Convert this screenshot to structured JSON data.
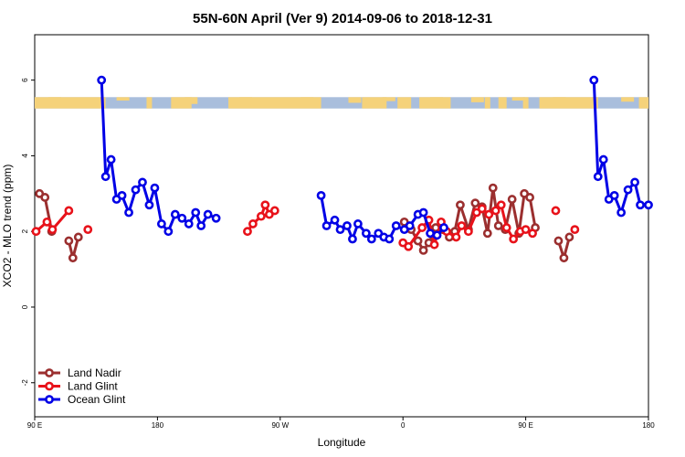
{
  "chart_data": {
    "type": "line",
    "title": "55N-60N April (Ver 9)   2014-09-06 to 2018-12-31",
    "xlabel": "Longitude",
    "ylabel": "XCO2 - MLO trend (ppm)",
    "x_ticks": [
      {
        "value": 90,
        "label": "90 E"
      },
      {
        "value": 180,
        "label": "180"
      },
      {
        "value": 270,
        "label": "90 W"
      },
      {
        "value": 360,
        "label": "0"
      },
      {
        "value": 450,
        "label": "90 E"
      },
      {
        "value": 540,
        "label": "180"
      }
    ],
    "y_ticks": [
      {
        "value": -2,
        "label": "-2"
      },
      {
        "value": 0,
        "label": "0"
      },
      {
        "value": 2,
        "label": "2"
      },
      {
        "value": 4,
        "label": "4"
      },
      {
        "value": 6,
        "label": "6"
      }
    ],
    "xlim": [
      90,
      540
    ],
    "ylim": [
      -2.9,
      7.2
    ],
    "land_band": {
      "y_range": [
        5.25,
        5.55
      ],
      "land_color": "#f5d27a",
      "ocean_color": "#a9bedc"
    },
    "legend": {
      "position": "bottom-left"
    },
    "series": [
      {
        "name": "Land Nadir",
        "color": "#9b2f2f",
        "points": [
          [
            93.5,
            3.0
          ],
          [
            97.5,
            2.9
          ],
          [
            102.5,
            2.0
          ],
          [
            115,
            1.75
          ],
          [
            118,
            1.3
          ],
          [
            122,
            1.85
          ],
          [
            361,
            2.25
          ],
          [
            366,
            2.05
          ],
          [
            371,
            1.75
          ],
          [
            375,
            1.5
          ],
          [
            379,
            1.7
          ],
          [
            384,
            2.1
          ],
          [
            389,
            2.05
          ],
          [
            394,
            1.85
          ],
          [
            398,
            2.0
          ],
          [
            402,
            2.7
          ],
          [
            408,
            2.05
          ],
          [
            413,
            2.75
          ],
          [
            418,
            2.65
          ],
          [
            422,
            1.95
          ],
          [
            426,
            3.15
          ],
          [
            430,
            2.15
          ],
          [
            435,
            2.05
          ],
          [
            440,
            2.85
          ],
          [
            445,
            1.95
          ],
          [
            449,
            3.0
          ],
          [
            453,
            2.9
          ],
          [
            457,
            2.1
          ],
          [
            474,
            1.75
          ],
          [
            478,
            1.3
          ],
          [
            482,
            1.85
          ]
        ]
      },
      {
        "name": "Land Glint",
        "color": "#e8121a",
        "points": [
          [
            91,
            2.0
          ],
          [
            99,
            2.25
          ],
          [
            103,
            2.05
          ],
          [
            115,
            2.55
          ],
          [
            129,
            2.05
          ],
          [
            246,
            2.0
          ],
          [
            250,
            2.2
          ],
          [
            256,
            2.4
          ],
          [
            259,
            2.7
          ],
          [
            262,
            2.45
          ],
          [
            266,
            2.55
          ],
          [
            360,
            1.7
          ],
          [
            364,
            1.6
          ],
          [
            374,
            2.1
          ],
          [
            379,
            2.3
          ],
          [
            383,
            1.65
          ],
          [
            388,
            2.25
          ],
          [
            392,
            2.0
          ],
          [
            399,
            1.85
          ],
          [
            403,
            2.15
          ],
          [
            408,
            2.0
          ],
          [
            414,
            2.5
          ],
          [
            418,
            2.6
          ],
          [
            423,
            2.45
          ],
          [
            428,
            2.55
          ],
          [
            432,
            2.7
          ],
          [
            436,
            2.1
          ],
          [
            441,
            1.8
          ],
          [
            446,
            2.0
          ],
          [
            450,
            2.05
          ],
          [
            455,
            1.95
          ],
          [
            472,
            2.55
          ],
          [
            486,
            2.05
          ]
        ]
      },
      {
        "name": "Ocean Glint",
        "color": "#0000e6",
        "points": [
          [
            139,
            6.0
          ],
          [
            142,
            3.45
          ],
          [
            146,
            3.9
          ],
          [
            150,
            2.85
          ],
          [
            154,
            2.95
          ],
          [
            159,
            2.5
          ],
          [
            164,
            3.1
          ],
          [
            169,
            3.3
          ],
          [
            174,
            2.7
          ],
          [
            178,
            3.15
          ],
          [
            183,
            2.2
          ],
          [
            188,
            2.0
          ],
          [
            193,
            2.45
          ],
          [
            198,
            2.35
          ],
          [
            203,
            2.2
          ],
          [
            208,
            2.5
          ],
          [
            212,
            2.15
          ],
          [
            217,
            2.45
          ],
          [
            223,
            2.35
          ],
          [
            300,
            2.95
          ],
          [
            304,
            2.15
          ],
          [
            310,
            2.3
          ],
          [
            314,
            2.05
          ],
          [
            319,
            2.15
          ],
          [
            323,
            1.8
          ],
          [
            327,
            2.2
          ],
          [
            333,
            1.95
          ],
          [
            337,
            1.8
          ],
          [
            342,
            1.95
          ],
          [
            346,
            1.85
          ],
          [
            350,
            1.8
          ],
          [
            355,
            2.15
          ],
          [
            361,
            2.05
          ],
          [
            365,
            2.15
          ],
          [
            371,
            2.45
          ],
          [
            375,
            2.5
          ],
          [
            380,
            1.95
          ],
          [
            385,
            1.9
          ],
          [
            390,
            2.1
          ],
          [
            500,
            6.0
          ],
          [
            503,
            3.45
          ],
          [
            507,
            3.9
          ],
          [
            511,
            2.85
          ],
          [
            515,
            2.95
          ],
          [
            520,
            2.5
          ],
          [
            525,
            3.1
          ],
          [
            530,
            3.3
          ],
          [
            534,
            2.7
          ],
          [
            540,
            2.7
          ]
        ]
      }
    ]
  }
}
